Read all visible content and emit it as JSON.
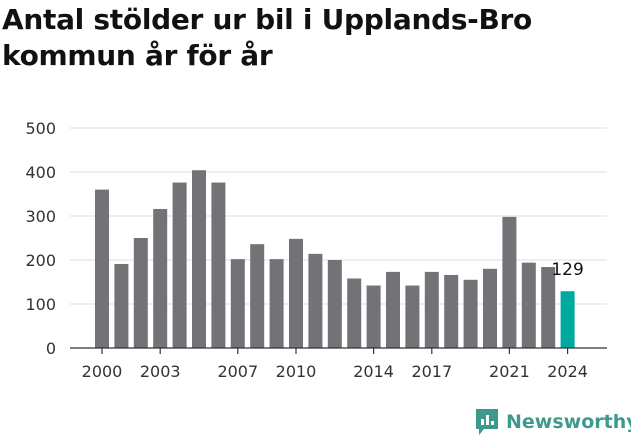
{
  "title": "Antal stölder ur bil i Upplands-Bro kommun år för år",
  "brand": {
    "name": "Newsworthy",
    "icon": "newsworthy-logo-icon",
    "color": "#3d9a8b"
  },
  "colors": {
    "bar": "#737277",
    "highlight": "#00a99d",
    "grid": "#dddddd",
    "axis": "#333333"
  },
  "chart_data": {
    "type": "bar",
    "title": "Antal stölder ur bil i Upplands-Bro kommun år för år",
    "xlabel": "",
    "ylabel": "",
    "categories": [
      "2000",
      "2001",
      "2002",
      "2003",
      "2004",
      "2005",
      "2006",
      "2007",
      "2008",
      "2009",
      "2010",
      "2011",
      "2012",
      "2013",
      "2014",
      "2015",
      "2016",
      "2017",
      "2018",
      "2019",
      "2020",
      "2021",
      "2022",
      "2023",
      "2024"
    ],
    "values": [
      360,
      191,
      250,
      316,
      376,
      404,
      376,
      202,
      236,
      202,
      248,
      214,
      200,
      158,
      142,
      173,
      142,
      173,
      166,
      155,
      180,
      298,
      194,
      184,
      129
    ],
    "x_tick_labels": [
      "2000",
      "2003",
      "2007",
      "2010",
      "2014",
      "2017",
      "2021",
      "2024"
    ],
    "y_ticks": [
      0,
      100,
      200,
      300,
      400,
      500
    ],
    "ylim": [
      0,
      500
    ],
    "grid": true,
    "highlight_category": "2024",
    "annotations": [
      {
        "category": "2024",
        "text": "129"
      }
    ]
  }
}
